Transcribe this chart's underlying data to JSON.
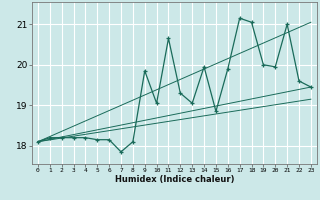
{
  "xlabel": "Humidex (Indice chaleur)",
  "background_color": "#cce8e8",
  "grid_color": "#ffffff",
  "line_color": "#1a6b5a",
  "xlim": [
    -0.5,
    23.5
  ],
  "ylim": [
    17.55,
    21.55
  ],
  "xticks": [
    0,
    1,
    2,
    3,
    4,
    5,
    6,
    7,
    8,
    9,
    10,
    11,
    12,
    13,
    14,
    15,
    16,
    17,
    18,
    19,
    20,
    21,
    22,
    23
  ],
  "yticks": [
    18,
    19,
    20,
    21
  ],
  "main_series_x": [
    0,
    1,
    2,
    3,
    4,
    5,
    6,
    7,
    8,
    9,
    10,
    11,
    12,
    13,
    14,
    15,
    16,
    17,
    18,
    19,
    20,
    21,
    22,
    23
  ],
  "main_series_y": [
    18.1,
    18.2,
    18.2,
    18.2,
    18.2,
    18.15,
    18.15,
    17.85,
    18.1,
    19.85,
    19.05,
    20.65,
    19.3,
    19.05,
    19.95,
    18.85,
    19.9,
    21.15,
    21.05,
    20.0,
    19.95,
    21.0,
    19.6,
    19.45
  ],
  "trend1_x": [
    0,
    23
  ],
  "trend1_y": [
    18.1,
    19.45
  ],
  "trend2_x": [
    0,
    23
  ],
  "trend2_y": [
    18.1,
    19.15
  ],
  "trend3_x": [
    0,
    23
  ],
  "trend3_y": [
    18.1,
    21.05
  ]
}
